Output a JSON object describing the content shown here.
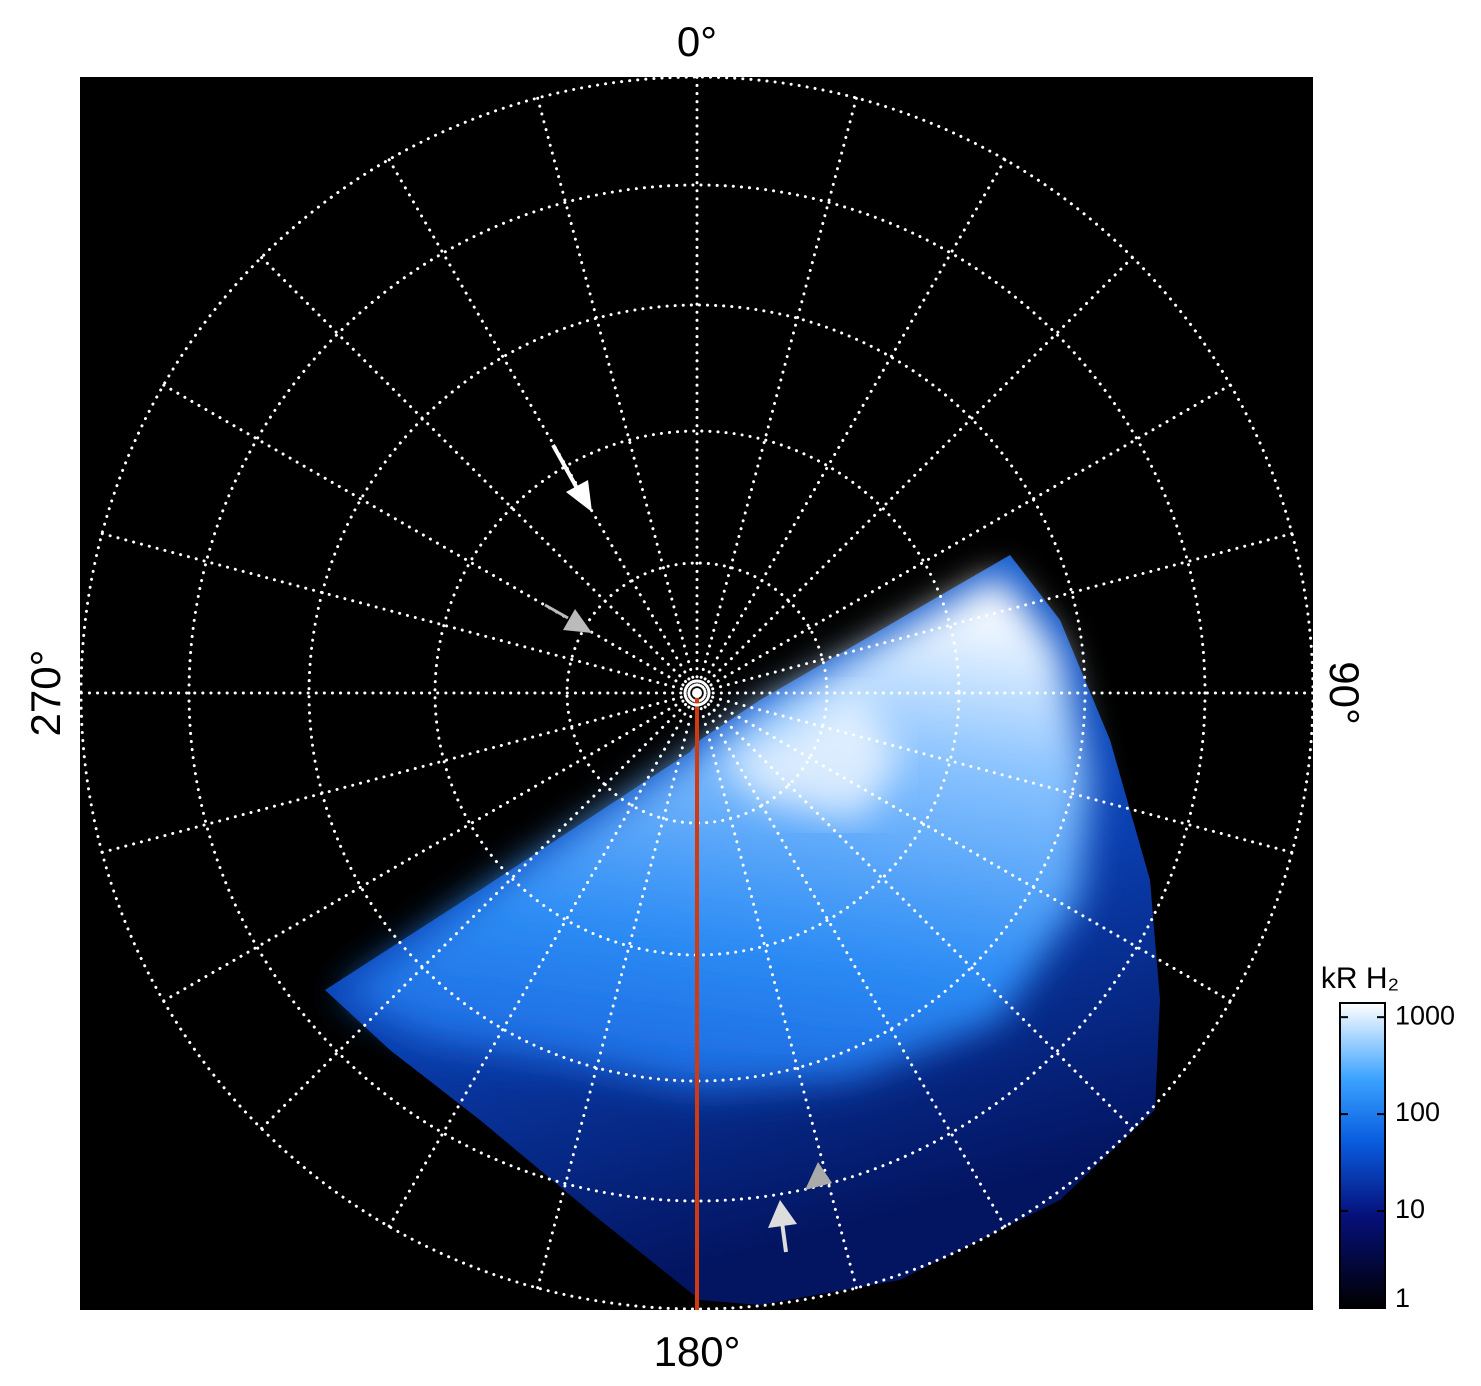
{
  "labels": {
    "top": "0°",
    "right": "90°",
    "bottom": "180°",
    "left": "270°"
  },
  "colorbar": {
    "title": "kR H₂",
    "scale": "log",
    "lim": [
      1,
      1400
    ],
    "ticks": [
      1,
      10,
      100,
      1000
    ]
  }
}
